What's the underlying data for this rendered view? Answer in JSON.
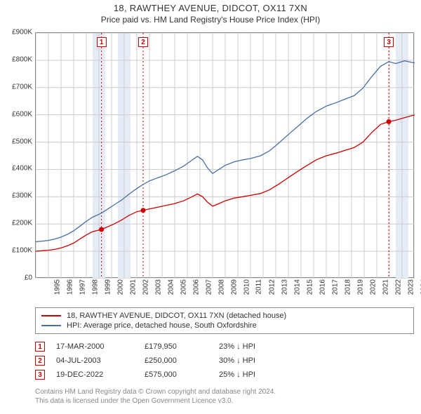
{
  "title": "18, RAWTHEY AVENUE, DIDCOT, OX11 7XN",
  "subtitle": "Price paid vs. HM Land Registry's House Price Index (HPI)",
  "chart": {
    "type": "line",
    "background_color": "#ffffff",
    "grid_color": "#cccccc",
    "border_color": "#888888",
    "ylim": [
      0,
      900000
    ],
    "ytick_step": 100000,
    "xlim": [
      1995,
      2025
    ],
    "xtick_step": 1,
    "y_prefix": "£",
    "y_suffix": "K",
    "label_fontsize": 10,
    "highlight_bands": [
      {
        "start": 1999.5,
        "end": 2000.5,
        "color": "#e6ecf5"
      },
      {
        "start": 2001.5,
        "end": 2002.5,
        "color": "#e6ecf5"
      },
      {
        "start": 2023.5,
        "end": 2024.5,
        "color": "#e6ecf5"
      }
    ],
    "series": [
      {
        "name": "property",
        "label": "18, RAWTHEY AVENUE, DIDCOT, OX11 7XN (detached house)",
        "color": "#cc0000",
        "line_width": 1.3,
        "data": [
          [
            1995.0,
            100000
          ],
          [
            1995.5,
            102000
          ],
          [
            1996.0,
            104000
          ],
          [
            1996.5,
            107000
          ],
          [
            1997.0,
            112000
          ],
          [
            1997.5,
            120000
          ],
          [
            1998.0,
            130000
          ],
          [
            1998.5,
            145000
          ],
          [
            1999.0,
            160000
          ],
          [
            1999.5,
            172000
          ],
          [
            2000.2,
            179950
          ],
          [
            2000.7,
            190000
          ],
          [
            2001.2,
            200000
          ],
          [
            2001.8,
            215000
          ],
          [
            2002.4,
            232000
          ],
          [
            2003.0,
            245000
          ],
          [
            2003.5,
            250000
          ],
          [
            2004.0,
            255000
          ],
          [
            2004.7,
            262000
          ],
          [
            2005.3,
            268000
          ],
          [
            2006.0,
            275000
          ],
          [
            2006.7,
            285000
          ],
          [
            2007.3,
            298000
          ],
          [
            2007.8,
            310000
          ],
          [
            2008.2,
            300000
          ],
          [
            2008.6,
            280000
          ],
          [
            2009.0,
            265000
          ],
          [
            2009.5,
            275000
          ],
          [
            2010.0,
            285000
          ],
          [
            2010.7,
            295000
          ],
          [
            2011.4,
            300000
          ],
          [
            2012.0,
            305000
          ],
          [
            2012.8,
            312000
          ],
          [
            2013.5,
            325000
          ],
          [
            2014.2,
            345000
          ],
          [
            2015.0,
            370000
          ],
          [
            2015.8,
            395000
          ],
          [
            2016.5,
            415000
          ],
          [
            2017.2,
            435000
          ],
          [
            2018.0,
            450000
          ],
          [
            2018.8,
            460000
          ],
          [
            2019.5,
            470000
          ],
          [
            2020.2,
            480000
          ],
          [
            2020.9,
            500000
          ],
          [
            2021.6,
            535000
          ],
          [
            2022.3,
            565000
          ],
          [
            2022.95,
            575000
          ],
          [
            2023.5,
            580000
          ],
          [
            2024.2,
            590000
          ],
          [
            2025.0,
            600000
          ]
        ]
      },
      {
        "name": "hpi",
        "label": "HPI: Average price, detached house, South Oxfordshire",
        "color": "#4a6fa5",
        "line_width": 1.3,
        "data": [
          [
            1995.0,
            135000
          ],
          [
            1995.5,
            137000
          ],
          [
            1996.0,
            140000
          ],
          [
            1996.5,
            145000
          ],
          [
            1997.0,
            152000
          ],
          [
            1997.5,
            162000
          ],
          [
            1998.0,
            175000
          ],
          [
            1998.5,
            192000
          ],
          [
            1999.0,
            210000
          ],
          [
            1999.5,
            225000
          ],
          [
            2000.2,
            240000
          ],
          [
            2000.7,
            255000
          ],
          [
            2001.2,
            270000
          ],
          [
            2001.8,
            288000
          ],
          [
            2002.4,
            310000
          ],
          [
            2003.0,
            330000
          ],
          [
            2003.5,
            345000
          ],
          [
            2004.0,
            358000
          ],
          [
            2004.7,
            370000
          ],
          [
            2005.3,
            380000
          ],
          [
            2006.0,
            395000
          ],
          [
            2006.7,
            412000
          ],
          [
            2007.3,
            432000
          ],
          [
            2007.8,
            448000
          ],
          [
            2008.2,
            435000
          ],
          [
            2008.6,
            405000
          ],
          [
            2009.0,
            385000
          ],
          [
            2009.5,
            400000
          ],
          [
            2010.0,
            415000
          ],
          [
            2010.7,
            428000
          ],
          [
            2011.4,
            435000
          ],
          [
            2012.0,
            440000
          ],
          [
            2012.8,
            450000
          ],
          [
            2013.5,
            468000
          ],
          [
            2014.2,
            495000
          ],
          [
            2015.0,
            528000
          ],
          [
            2015.8,
            560000
          ],
          [
            2016.5,
            588000
          ],
          [
            2017.2,
            612000
          ],
          [
            2018.0,
            632000
          ],
          [
            2018.8,
            645000
          ],
          [
            2019.5,
            658000
          ],
          [
            2020.2,
            670000
          ],
          [
            2020.9,
            698000
          ],
          [
            2021.6,
            740000
          ],
          [
            2022.3,
            778000
          ],
          [
            2022.95,
            795000
          ],
          [
            2023.5,
            788000
          ],
          [
            2024.2,
            798000
          ],
          [
            2025.0,
            790000
          ]
        ]
      }
    ],
    "sale_markers": [
      {
        "n": "1",
        "x": 2000.2,
        "y": 179950,
        "color": "#cc0000"
      },
      {
        "n": "2",
        "x": 2003.5,
        "y": 250000,
        "color": "#cc0000"
      },
      {
        "n": "3",
        "x": 2022.95,
        "y": 575000,
        "color": "#cc0000"
      }
    ]
  },
  "legend": {
    "border_color": "#888888",
    "items": [
      {
        "color": "#cc0000",
        "label": "18, RAWTHEY AVENUE, DIDCOT, OX11 7XN (detached house)"
      },
      {
        "color": "#4a6fa5",
        "label": "HPI: Average price, detached house, South Oxfordshire"
      }
    ]
  },
  "sales": [
    {
      "n": "1",
      "color": "#cc0000",
      "date": "17-MAR-2000",
      "price": "£179,950",
      "diff": "23% ↓ HPI"
    },
    {
      "n": "2",
      "color": "#cc0000",
      "date": "04-JUL-2003",
      "price": "£250,000",
      "diff": "30% ↓ HPI"
    },
    {
      "n": "3",
      "color": "#cc0000",
      "date": "19-DEC-2022",
      "price": "£575,000",
      "diff": "25% ↓ HPI"
    }
  ],
  "footer": {
    "line1": "Contains HM Land Registry data © Crown copyright and database right 2024.",
    "line2": "This data is licensed under the Open Government Licence v3.0.",
    "color": "#888888"
  }
}
